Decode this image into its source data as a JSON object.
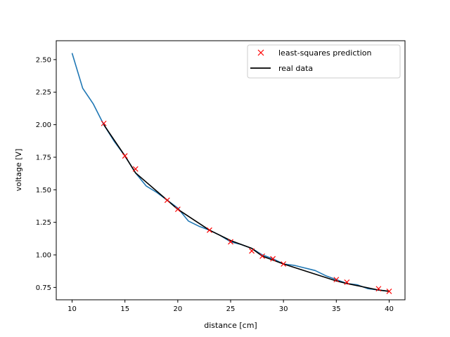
{
  "chart_data": {
    "type": "line",
    "xlabel": "distance [cm]",
    "ylabel": "voltage [V]",
    "xlim": [
      8.5,
      41.5
    ],
    "ylim": [
      0.655,
      2.645
    ],
    "xticks": [
      10,
      15,
      20,
      25,
      30,
      35,
      40
    ],
    "yticks": [
      0.75,
      1.0,
      1.25,
      1.5,
      1.75,
      2.0,
      2.25,
      2.5
    ],
    "xtick_labels": [
      "10",
      "15",
      "20",
      "25",
      "30",
      "35",
      "40"
    ],
    "ytick_labels": [
      "0.75",
      "1.00",
      "1.25",
      "1.50",
      "1.75",
      "2.00",
      "2.25",
      "2.50"
    ],
    "grid": false,
    "legend_position": "top-right",
    "series": [
      {
        "name": "",
        "kind": "line",
        "color": "#1f77b4",
        "x": [
          10,
          11,
          12,
          13,
          14,
          15,
          16,
          17,
          18,
          19,
          20,
          21,
          22,
          23,
          24,
          25,
          26,
          27,
          28,
          29,
          30,
          31,
          32,
          33,
          34,
          35,
          36,
          37,
          38,
          39,
          40
        ],
        "y": [
          2.55,
          2.28,
          2.16,
          2.0,
          1.87,
          1.76,
          1.63,
          1.53,
          1.48,
          1.42,
          1.36,
          1.26,
          1.22,
          1.19,
          1.15,
          1.1,
          1.08,
          1.05,
          1.0,
          0.97,
          0.93,
          0.92,
          0.9,
          0.88,
          0.84,
          0.81,
          0.78,
          0.77,
          0.74,
          0.73,
          0.72
        ]
      },
      {
        "name": "real data",
        "kind": "line",
        "color": "#000000",
        "x": [
          13,
          15,
          16,
          19,
          20,
          23,
          25,
          27,
          28,
          29,
          30,
          35,
          36,
          39,
          40
        ],
        "y": [
          2.0,
          1.76,
          1.63,
          1.42,
          1.35,
          1.19,
          1.11,
          1.05,
          0.99,
          0.96,
          0.93,
          0.8,
          0.78,
          0.73,
          0.72
        ]
      },
      {
        "name": "least-squares prediction",
        "kind": "marker",
        "color": "#ff0000",
        "x": [
          13,
          15,
          16,
          19,
          20,
          23,
          25,
          27,
          28,
          29,
          30,
          35,
          36,
          39,
          40
        ],
        "y": [
          2.01,
          1.76,
          1.66,
          1.42,
          1.35,
          1.19,
          1.1,
          1.03,
          0.99,
          0.97,
          0.93,
          0.81,
          0.79,
          0.74,
          0.72
        ]
      }
    ],
    "legend": [
      {
        "label": "least-squares prediction",
        "kind": "marker",
        "color": "#ff0000"
      },
      {
        "label": "real data",
        "kind": "line",
        "color": "#000000"
      }
    ]
  }
}
